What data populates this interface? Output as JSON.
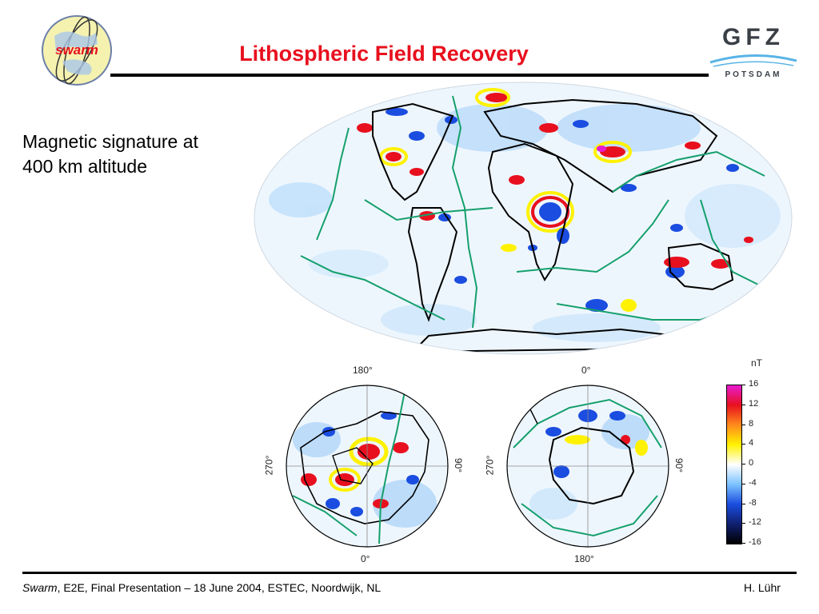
{
  "header": {
    "logo_left_text": "swarm",
    "title": "Lithospheric Field Recovery",
    "logo_right_text": "GFZ",
    "logo_right_sub": "POTSDAM"
  },
  "description": {
    "line1": "Magnetic signature at",
    "line2": "400 km altitude"
  },
  "polar_maps": {
    "north": {
      "top": "180°",
      "bottom": "0°",
      "left": "270°",
      "right": "90°"
    },
    "south": {
      "top": "0°",
      "bottom": "180°",
      "left": "270°",
      "right": "90°"
    }
  },
  "colorbar": {
    "unit": "nT",
    "ticks": [
      "16",
      "12",
      "8",
      "4",
      "0",
      "-4",
      "-8",
      "-12",
      "-16"
    ],
    "colors": [
      "#e81bd0",
      "#e8101e",
      "#ff8a1c",
      "#fff200",
      "#ffffff",
      "#7cc3ff",
      "#1a4de0",
      "#102070",
      "#000000"
    ]
  },
  "footer": {
    "left_em": "Swarm",
    "left_rest": ", E2E, Final Presentation – 18 June 2004, ESTEC, Noordwijk, NL",
    "right": "H. Lühr"
  }
}
